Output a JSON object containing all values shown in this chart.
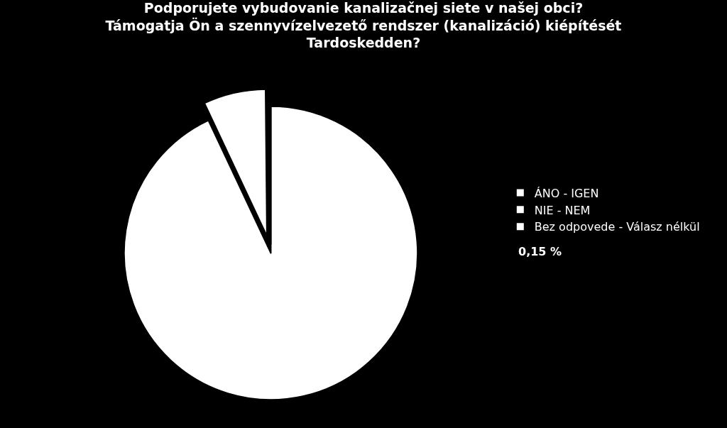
{
  "chart_data": {
    "type": "pie",
    "title": "Podporujete vybudovanie kanalizačnej siete v našej obci?\nTámogatja Ön a szennyvízelvezető rendszer (kanalizáció) kiépítését\nTardoskedden?",
    "categories": [
      "ÁNO - IGEN",
      "NIE - NEM",
      "Bez odpovede - Válasz nélkül"
    ],
    "values": [
      93.0,
      6.85,
      0.15
    ],
    "colors": [
      "#ffffff",
      "#ffffff",
      "#ffffff"
    ],
    "annotations": [
      "0,15 %"
    ],
    "legend": "right"
  }
}
